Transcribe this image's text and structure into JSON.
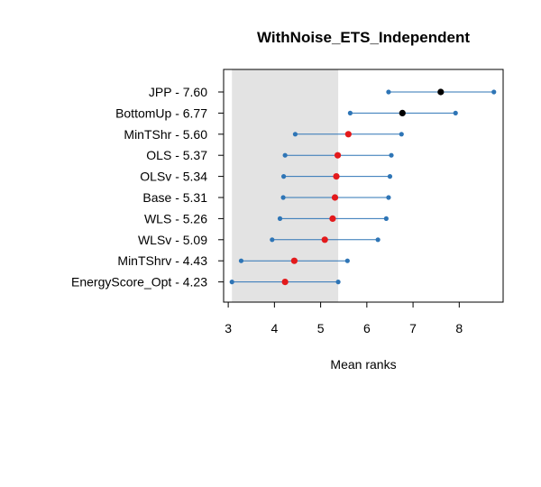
{
  "chart_data": {
    "type": "scatter",
    "title": "WithNoise_ETS_Independent",
    "xlabel": "Mean ranks",
    "ylabel": "",
    "xlim": [
      2.9,
      8.95
    ],
    "xticks": [
      3,
      4,
      5,
      6,
      7,
      8
    ],
    "grid": false,
    "shaded_interval": [
      3.08,
      5.38
    ],
    "colors": {
      "interval_line": "#2e75b6",
      "interval_end": "#2e75b6",
      "shade": "#e3e3e3",
      "mean_significant": "#e31a1c",
      "mean_best": "#000000"
    },
    "methods": [
      {
        "label": "JPP - 7.60",
        "mean": 7.6,
        "lower": 6.47,
        "upper": 8.75,
        "marker": "black"
      },
      {
        "label": "BottomUp - 6.77",
        "mean": 6.77,
        "lower": 5.64,
        "upper": 7.92,
        "marker": "black"
      },
      {
        "label": "MinTShr - 5.60",
        "mean": 5.6,
        "lower": 4.45,
        "upper": 6.75,
        "marker": "red"
      },
      {
        "label": "OLS - 5.37",
        "mean": 5.37,
        "lower": 4.23,
        "upper": 6.53,
        "marker": "red"
      },
      {
        "label": "OLSv - 5.34",
        "mean": 5.34,
        "lower": 4.2,
        "upper": 6.5,
        "marker": "red"
      },
      {
        "label": "Base - 5.31",
        "mean": 5.31,
        "lower": 4.19,
        "upper": 6.47,
        "marker": "red"
      },
      {
        "label": "WLS - 5.26",
        "mean": 5.26,
        "lower": 4.12,
        "upper": 6.42,
        "marker": "red"
      },
      {
        "label": "WLSv - 5.09",
        "mean": 5.09,
        "lower": 3.95,
        "upper": 6.24,
        "marker": "red"
      },
      {
        "label": "MinTShrv - 4.43",
        "mean": 4.43,
        "lower": 3.28,
        "upper": 5.58,
        "marker": "red"
      },
      {
        "label": "EnergyScore_Opt - 4.23",
        "mean": 4.23,
        "lower": 3.08,
        "upper": 5.38,
        "marker": "red"
      }
    ]
  }
}
